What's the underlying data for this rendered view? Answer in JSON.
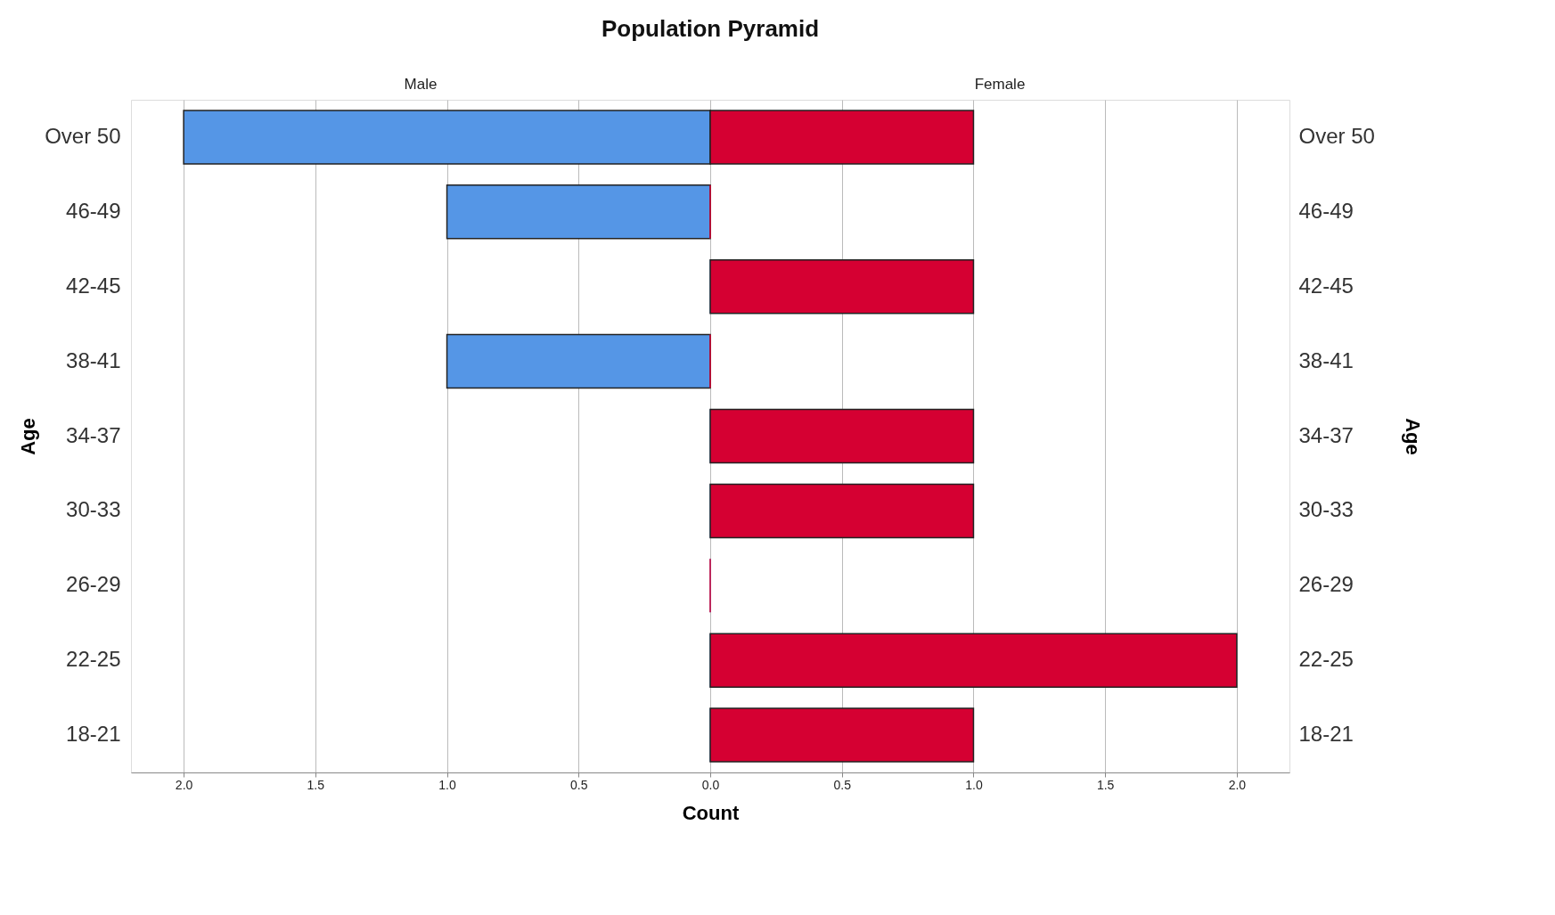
{
  "chart_data": {
    "type": "bar",
    "orientation": "horizontal",
    "title": "Population Pyramid",
    "xlabel": "Count",
    "ylabel": "Age",
    "y2label": "Age",
    "categories": [
      "Over 50",
      "46-49",
      "42-45",
      "38-41",
      "34-37",
      "30-33",
      "26-29",
      "22-25",
      "18-21"
    ],
    "series": [
      {
        "name": "Male",
        "color": "#5596e6",
        "values": [
          -2,
          -1,
          0,
          -1,
          0,
          0,
          0,
          0,
          0
        ]
      },
      {
        "name": "Female",
        "color": "#d50032",
        "values": [
          1,
          0,
          1,
          0,
          1,
          1,
          0,
          2,
          1
        ]
      }
    ],
    "xlim": [
      -2.2,
      2.2
    ],
    "xticks": [
      {
        "value": -2,
        "label": "2.0"
      },
      {
        "value": -1.5,
        "label": "1.5"
      },
      {
        "value": -1,
        "label": "1.0"
      },
      {
        "value": -0.5,
        "label": "0.5"
      },
      {
        "value": 0,
        "label": "0.0"
      },
      {
        "value": 0.5,
        "label": "0.5"
      },
      {
        "value": 1,
        "label": "1.0"
      },
      {
        "value": 1.5,
        "label": "1.5"
      },
      {
        "value": 2,
        "label": "2.0"
      }
    ],
    "grid": "x",
    "legend": false
  }
}
